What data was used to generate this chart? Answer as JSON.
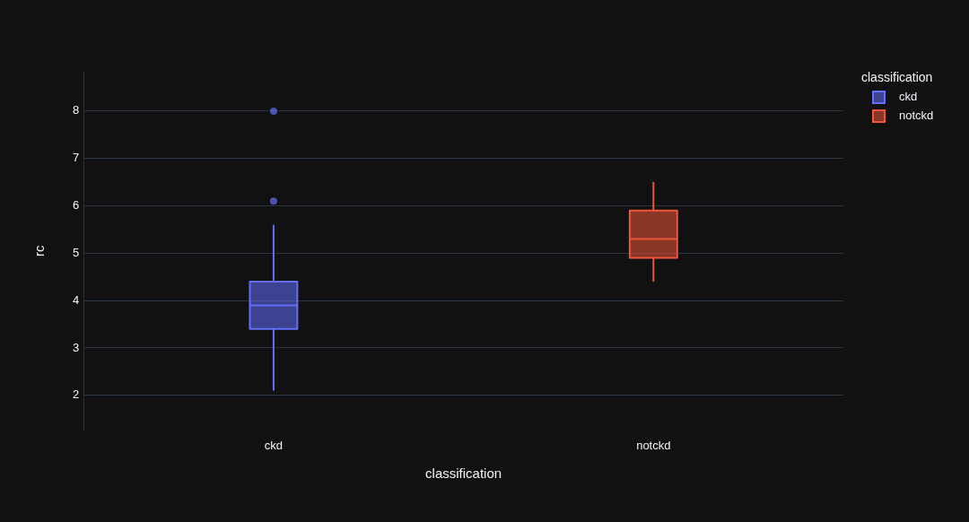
{
  "chart_data": {
    "type": "box",
    "xlabel": "classification",
    "ylabel": "rc",
    "legend_title": "classification",
    "categories": [
      "ckd",
      "notckd"
    ],
    "series": [
      {
        "name": "ckd",
        "color": "#636efa",
        "boxes": [
          {
            "low": 2.1,
            "q1": 3.4,
            "median": 3.9,
            "q3": 4.4,
            "high": 5.6,
            "outliers": [
              6.1,
              8.0
            ]
          },
          null
        ]
      },
      {
        "name": "notckd",
        "color": "#ef553b",
        "boxes": [
          null,
          {
            "low": 4.4,
            "q1": 4.9,
            "median": 5.3,
            "q3": 5.9,
            "high": 6.5
          }
        ]
      }
    ],
    "ylim": [
      1.25,
      8.85
    ],
    "yticks": [
      2,
      3,
      4,
      5,
      6,
      7,
      8
    ],
    "grid": "y",
    "legend": "top right"
  }
}
